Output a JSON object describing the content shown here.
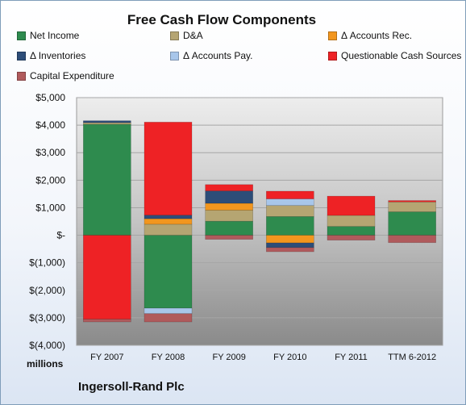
{
  "chart_data": {
    "type": "bar",
    "stacked": true,
    "title": "Free Cash Flow Components",
    "ylabel": "millions",
    "ylim": [
      -4000,
      5000
    ],
    "y_ticks": [
      5000,
      4000,
      3000,
      2000,
      1000,
      0,
      -1000,
      -2000,
      -3000,
      -4000
    ],
    "y_tick_labels": [
      "$5,000",
      "$4,000",
      "$3,000",
      "$2,000",
      "$1,000",
      "$-",
      "$(1,000)",
      "$(2,000)",
      "$(3,000)",
      "$(4,000)"
    ],
    "categories": [
      "FY 2007",
      "FY 2008",
      "FY 2009",
      "FY 2010",
      "FY 2011",
      "TTM 6-2012"
    ],
    "grid": true,
    "legend_position": "top",
    "series": [
      {
        "name": "Net Income",
        "color": "#2e8b4e",
        "values": [
          4030,
          -2650,
          510,
          680,
          320,
          850
        ]
      },
      {
        "name": "D&A",
        "color": "#b5a572",
        "values": [
          60,
          400,
          400,
          400,
          400,
          360
        ]
      },
      {
        "name": "Δ Accounts Rec.",
        "color": "#f2961e",
        "values": [
          0,
          200,
          250,
          -280,
          0,
          0
        ]
      },
      {
        "name": "Δ Inventories",
        "color": "#2d4d78",
        "values": [
          70,
          130,
          450,
          -170,
          0,
          0
        ]
      },
      {
        "name": "Δ Accounts Pay.",
        "color": "#a8c6ea",
        "values": [
          0,
          -200,
          0,
          240,
          0,
          0
        ]
      },
      {
        "name": "Questionable Cash Sources",
        "color": "#ee2225",
        "values": [
          -3050,
          3380,
          230,
          280,
          700,
          50
        ]
      },
      {
        "name": "Capital Expenditure",
        "color": "#b05a5c",
        "values": [
          -100,
          -300,
          -150,
          -150,
          -180,
          -270
        ]
      }
    ]
  },
  "company": "Ingersoll-Rand Plc"
}
